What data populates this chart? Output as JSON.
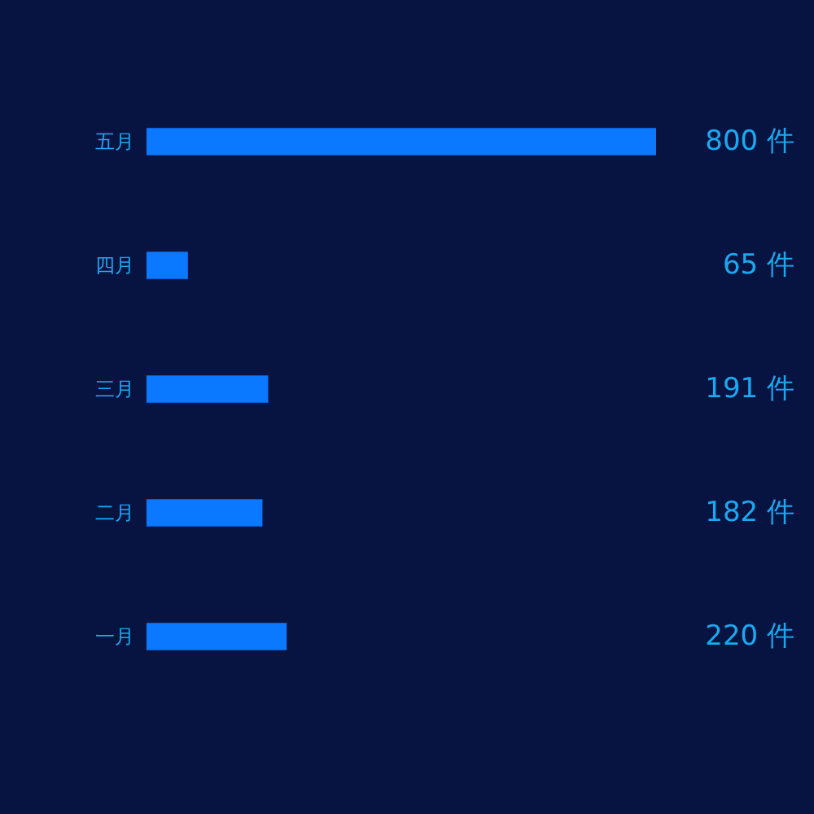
{
  "chart_data": {
    "type": "bar",
    "orientation": "horizontal",
    "categories": [
      "五月",
      "四月",
      "三月",
      "二月",
      "一月"
    ],
    "values": [
      800,
      65,
      191,
      182,
      220
    ],
    "value_labels": [
      "800 件",
      "65 件",
      "191 件",
      "182 件",
      "220 件"
    ],
    "color": "#0a78ff"
  }
}
